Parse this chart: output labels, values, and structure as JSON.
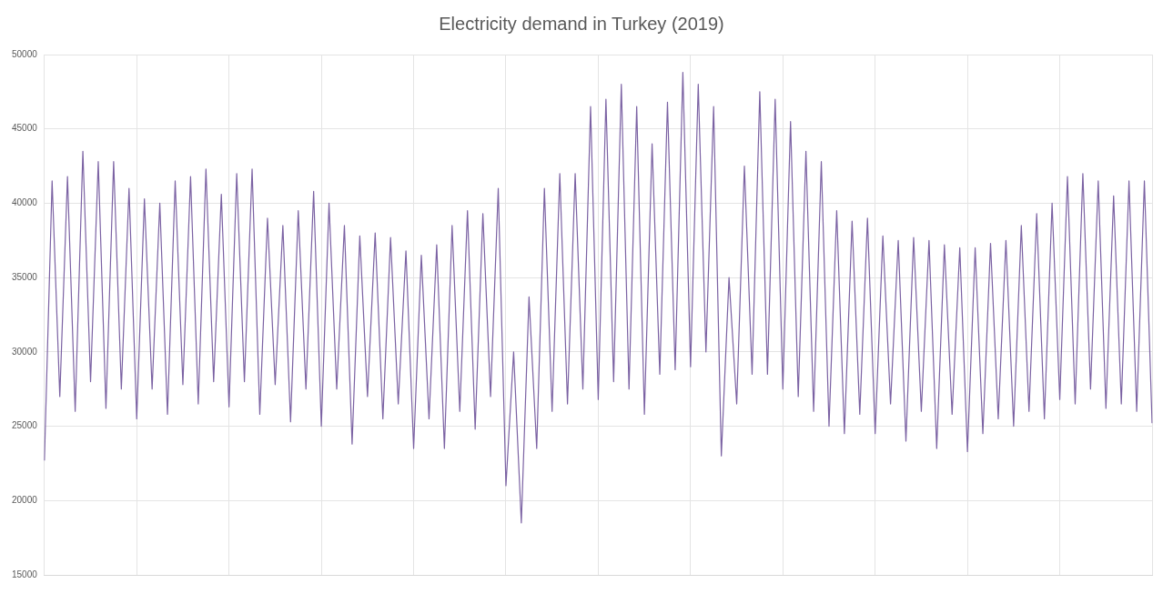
{
  "chart_data": {
    "type": "line",
    "title": "Electricity demand in Turkey (2019)",
    "categories": [
      null,
      null,
      null,
      null,
      null,
      null,
      null,
      null,
      null,
      null,
      null,
      null,
      null,
      null,
      null,
      null,
      null,
      null,
      null,
      null,
      null,
      null,
      null,
      null,
      null,
      null,
      null,
      null,
      null,
      null,
      null,
      null,
      null,
      null,
      null,
      null,
      null,
      null,
      null,
      null,
      null,
      null,
      null,
      null,
      null,
      null,
      null,
      null,
      null,
      null,
      null,
      null,
      null,
      null,
      null,
      null,
      null,
      null,
      null,
      null,
      null,
      null,
      null,
      null,
      null,
      null,
      null,
      null,
      null,
      null,
      null,
      null,
      null,
      null,
      null,
      null,
      null,
      null,
      null,
      null,
      null,
      null,
      null,
      null,
      null,
      null,
      null,
      null,
      null,
      null,
      null,
      null,
      null,
      null,
      null,
      null,
      null,
      null,
      null,
      null,
      null,
      null,
      null,
      null,
      null,
      null,
      null,
      null,
      null,
      null,
      null,
      null,
      null,
      null,
      null,
      null,
      null,
      null,
      null,
      null,
      null,
      null,
      null,
      null,
      null,
      null,
      null,
      null,
      null,
      null,
      null,
      null,
      null,
      null,
      null,
      null,
      null,
      null,
      null,
      null,
      null,
      null,
      null,
      null,
      null
    ],
    "series": [
      {
        "color": "#7b62a3",
        "values": [
          22700,
          41500,
          27000,
          41800,
          26000,
          43500,
          28000,
          42800,
          26200,
          42800,
          27500,
          41000,
          25500,
          40300,
          27500,
          40000,
          25800,
          41500,
          27800,
          41800,
          26500,
          42300,
          28000,
          40600,
          26300,
          42000,
          28000,
          42300,
          25800,
          39000,
          27800,
          38500,
          25300,
          39500,
          27500,
          40800,
          25000,
          40000,
          27500,
          38500,
          23800,
          37800,
          27000,
          38000,
          25500,
          37700,
          26500,
          36800,
          23500,
          36500,
          25500,
          37200,
          23500,
          38500,
          26000,
          39500,
          24800,
          39300,
          27000,
          41000,
          21000,
          30000,
          18500,
          33700,
          23500,
          41000,
          26000,
          42000,
          26500,
          42000,
          27500,
          46500,
          26800,
          47000,
          28000,
          48000,
          27500,
          46500,
          25800,
          44000,
          28500,
          46800,
          28800,
          48800,
          29000,
          48000,
          30000,
          46500,
          23000,
          35000,
          26500,
          42500,
          28500,
          47500,
          28500,
          47000,
          27500,
          45500,
          27000,
          43500,
          26000,
          42800,
          25000,
          39500,
          24500,
          38800,
          25800,
          39000,
          24500,
          37800,
          26500,
          37500,
          24000,
          37700,
          26000,
          37500,
          23500,
          37200,
          25800,
          37000,
          23300,
          37000,
          24500,
          37300,
          25500,
          37500,
          25000,
          38500,
          26000,
          39300,
          25500,
          40000,
          26800,
          41800,
          26500,
          42000,
          27500,
          41500,
          26200,
          40500,
          26500,
          41500,
          26000,
          41500,
          25200
        ]
      }
    ],
    "ylim": [
      15000,
      50000
    ],
    "yticks": [
      15000,
      20000,
      25000,
      30000,
      35000,
      40000,
      45000,
      50000
    ],
    "grid": true,
    "marker": "none",
    "line_style": "solid"
  }
}
